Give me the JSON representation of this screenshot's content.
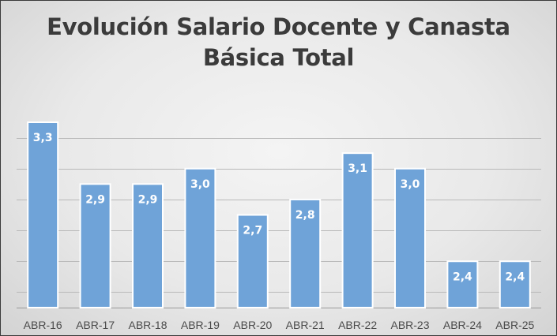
{
  "chart_data": {
    "type": "bar",
    "title_lines": [
      "Evolución Salario Docente y Canasta",
      "Básica Total"
    ],
    "categories": [
      "ABR-16",
      "ABR-17",
      "ABR-18",
      "ABR-19",
      "ABR-20",
      "ABR-21",
      "ABR-22",
      "ABR-23",
      "ABR-24",
      "ABR-25"
    ],
    "values": [
      3.3,
      2.9,
      2.9,
      3.0,
      2.7,
      2.8,
      3.1,
      3.0,
      2.4,
      2.4
    ],
    "value_labels": [
      "3,3",
      "2,9",
      "2,9",
      "3,0",
      "2,7",
      "2,8",
      "3,1",
      "3,0",
      "2,4",
      "2,4"
    ],
    "ylim": [
      2.1,
      3.3
    ],
    "gridlines": [
      2.2,
      2.4,
      2.6,
      2.8,
      3.0,
      3.2
    ],
    "grid": true,
    "y_axis_labels_visible": false,
    "legend": "none",
    "colors": {
      "bar": "#6fa3d8",
      "bar_outline": "#ffffff",
      "grid": "#b9b9b9",
      "label": "#ffffff",
      "title": "#3b3b3b"
    }
  }
}
